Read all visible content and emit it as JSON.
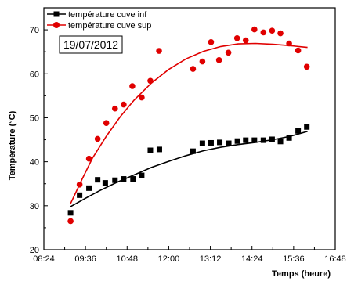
{
  "chart_data": {
    "type": "scatter",
    "title": "",
    "date_label": "19/07/2012",
    "xlabel": "Temps (heure)",
    "ylabel": "Température (°C)",
    "x_unit": "hours (HH:MM)",
    "xlim": [
      8.4,
      16.8
    ],
    "ylim": [
      20,
      75
    ],
    "xticks": [
      8.4,
      9.6,
      10.8,
      12.0,
      13.2,
      14.4,
      15.6,
      16.8
    ],
    "xtick_labels": [
      "08:24",
      "09:36",
      "10:48",
      "12:00",
      "13:12",
      "14:24",
      "15:36",
      "16:48"
    ],
    "yticks": [
      20,
      30,
      40,
      50,
      60,
      70
    ],
    "ytick_labels": [
      "20",
      "30",
      "40",
      "50",
      "60",
      "70"
    ],
    "grid": false,
    "legend_position": "top-left",
    "series": [
      {
        "name": "température cuve inf",
        "color": "#000000",
        "marker": "square",
        "points": [
          [
            9.17,
            28.4
          ],
          [
            9.43,
            32.4
          ],
          [
            9.7,
            34.0
          ],
          [
            9.95,
            35.9
          ],
          [
            10.17,
            35.2
          ],
          [
            10.45,
            35.8
          ],
          [
            10.7,
            36.1
          ],
          [
            10.97,
            36.1
          ],
          [
            11.22,
            36.9
          ],
          [
            11.47,
            42.6
          ],
          [
            11.73,
            42.8
          ],
          [
            12.7,
            42.4
          ],
          [
            12.97,
            44.2
          ],
          [
            13.22,
            44.3
          ],
          [
            13.47,
            44.4
          ],
          [
            13.73,
            44.2
          ],
          [
            13.98,
            44.7
          ],
          [
            14.22,
            44.9
          ],
          [
            14.47,
            44.9
          ],
          [
            14.73,
            44.9
          ],
          [
            14.98,
            45.1
          ],
          [
            15.22,
            44.6
          ],
          [
            15.47,
            45.4
          ],
          [
            15.73,
            47.0
          ],
          [
            15.98,
            47.9
          ]
        ],
        "fit": [
          [
            9.17,
            29.8
          ],
          [
            9.6,
            31.7
          ],
          [
            10.0,
            33.4
          ],
          [
            10.5,
            35.3
          ],
          [
            11.0,
            37.0
          ],
          [
            11.5,
            38.7
          ],
          [
            12.0,
            40.1
          ],
          [
            12.5,
            41.4
          ],
          [
            13.0,
            42.5
          ],
          [
            13.5,
            43.3
          ],
          [
            14.0,
            43.9
          ],
          [
            14.5,
            44.4
          ],
          [
            15.0,
            45.0
          ],
          [
            15.5,
            45.8
          ],
          [
            16.0,
            46.9
          ]
        ]
      },
      {
        "name": "température cuve sup",
        "color": "#e00000",
        "marker": "circle",
        "points": [
          [
            9.17,
            26.5
          ],
          [
            9.43,
            34.8
          ],
          [
            9.7,
            40.7
          ],
          [
            9.95,
            45.2
          ],
          [
            10.2,
            48.8
          ],
          [
            10.45,
            52.1
          ],
          [
            10.7,
            53.0
          ],
          [
            10.95,
            57.2
          ],
          [
            11.22,
            54.6
          ],
          [
            11.47,
            58.4
          ],
          [
            11.72,
            65.2
          ],
          [
            12.7,
            61.1
          ],
          [
            12.97,
            62.8
          ],
          [
            13.22,
            67.2
          ],
          [
            13.45,
            63.1
          ],
          [
            13.72,
            64.8
          ],
          [
            13.97,
            68.1
          ],
          [
            14.22,
            67.6
          ],
          [
            14.47,
            70.1
          ],
          [
            14.73,
            69.4
          ],
          [
            14.98,
            69.8
          ],
          [
            15.22,
            69.2
          ],
          [
            15.47,
            66.9
          ],
          [
            15.73,
            65.3
          ],
          [
            15.98,
            61.6
          ]
        ],
        "fit": [
          [
            9.17,
            30.5
          ],
          [
            9.5,
            36.0
          ],
          [
            9.8,
            40.8
          ],
          [
            10.2,
            45.8
          ],
          [
            10.6,
            50.2
          ],
          [
            11.0,
            54.0
          ],
          [
            11.5,
            57.9
          ],
          [
            12.0,
            61.0
          ],
          [
            12.5,
            63.4
          ],
          [
            13.0,
            65.1
          ],
          [
            13.5,
            66.2
          ],
          [
            14.0,
            66.8
          ],
          [
            14.5,
            66.9
          ],
          [
            15.0,
            66.7
          ],
          [
            15.5,
            66.4
          ],
          [
            16.0,
            66.0
          ]
        ]
      }
    ]
  }
}
